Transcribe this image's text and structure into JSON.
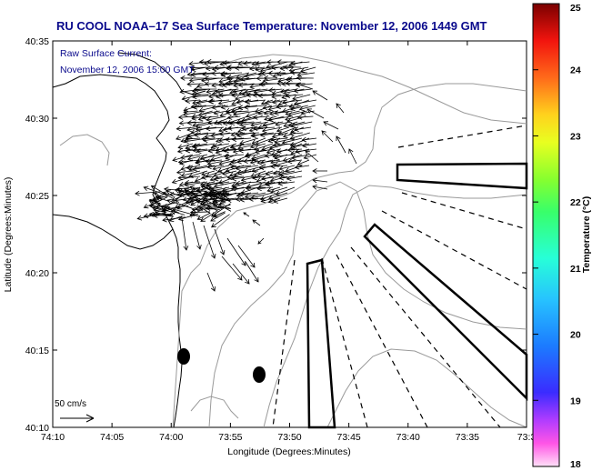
{
  "chart_data": {
    "type": "vector-field",
    "title": "RU COOL  NOAA–17  Sea Surface Temperature:  November 12, 2006 1449 GMT",
    "annotation": [
      "Raw Surface Current:",
      "November 12, 2006 15:00 GMT"
    ],
    "xlabel": "Longitude (Degrees:Minutes)",
    "ylabel": "Latitude (Degrees:Minutes)",
    "x_ticks": [
      "74:10",
      "74:05",
      "74:00",
      "73:55",
      "73:50",
      "73:45",
      "73:40",
      "73:35",
      "73:3"
    ],
    "y_ticks": [
      "40:35",
      "40:30",
      "40:25",
      "40:20",
      "40:15",
      "40:10"
    ],
    "xlim_min": [
      -74.1667,
      -73.5
    ],
    "ylim_min": [
      40.1667,
      40.5833
    ],
    "colorbar": {
      "label": "Temperature (°C)",
      "ticks": [
        "25",
        "24",
        "23",
        "22",
        "21",
        "20",
        "19",
        "18"
      ],
      "range": [
        18,
        25
      ]
    },
    "scale_arrow_label": "50 cm/s",
    "colors": {
      "title": "#0a0a8c",
      "annotation": "#0a0a8c",
      "land": "#ffffff",
      "contours": "#9a9a9a",
      "coast": "#000000",
      "vectors": "#000000"
    }
  }
}
